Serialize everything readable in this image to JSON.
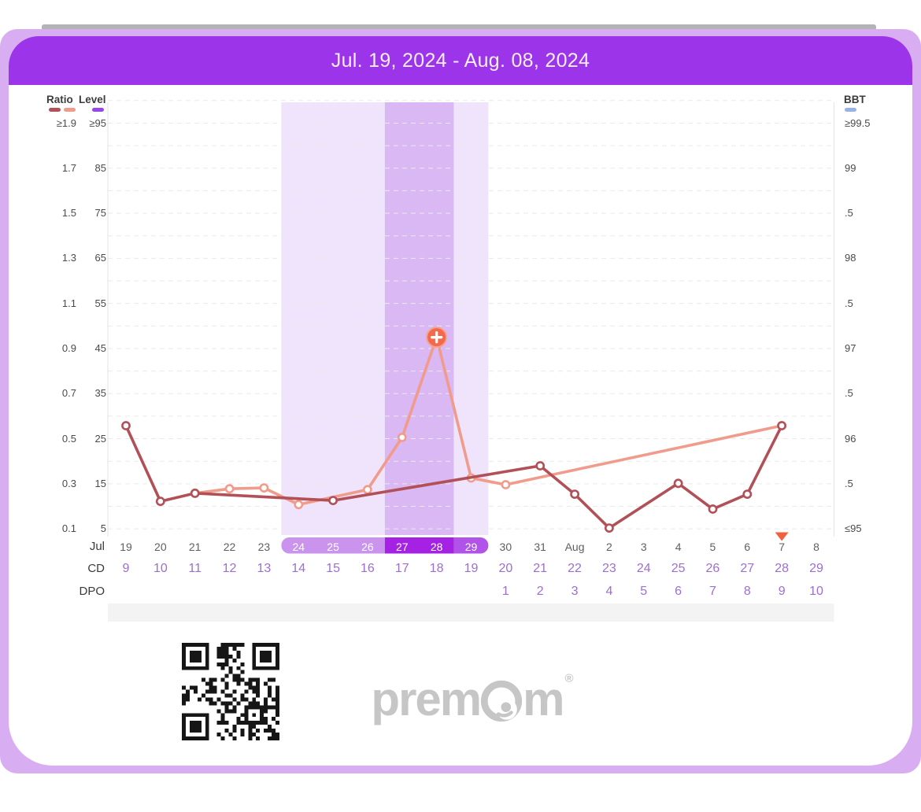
{
  "window": {
    "title": "Jul. 19, 2024 - Aug. 08, 2024"
  },
  "colors": {
    "header_purple": "#9c34e9",
    "frame_lavender": "#d8adf1",
    "ratio_dark": "#b25058",
    "ratio_salmon": "#f09b8b",
    "level_purple": "#9747e8",
    "bbt_blue": "#97b1ea",
    "band_light": "#efe4fb",
    "band_dark": "#d9b8f4",
    "pill_light": "#ca93ee",
    "pill_dark": "#a521e3",
    "pill_mid": "#b152e8",
    "peak_marker": "#f3694d",
    "today_triangle": "#f0613e",
    "cd_dpo_text": "#9d6ed2",
    "grid_line": "#eaeaea",
    "notes_strip": "#f3f3f4",
    "logo_gray": "#c6c6c6"
  },
  "legend": {
    "ratio_label": "Ratio",
    "level_label": "Level",
    "bbt_label": "BBT"
  },
  "axes": {
    "ratio_ticks": [
      "≥1.9",
      "1.7",
      "1.5",
      "1.3",
      "1.1",
      "0.9",
      "0.7",
      "0.5",
      "0.3",
      "0.1"
    ],
    "level_ticks": [
      "≥95",
      "85",
      "75",
      "65",
      "55",
      "45",
      "35",
      "25",
      "15",
      "5"
    ],
    "bbt_ticks": [
      "≥99.5",
      "99",
      ".5",
      "98",
      ".5",
      "97",
      ".5",
      "96",
      ".5",
      "≤95"
    ]
  },
  "x_axis": {
    "month_label": "Jul",
    "cd_row_label": "CD",
    "dpo_row_label": "DPO",
    "dates": [
      "19",
      "20",
      "21",
      "22",
      "23",
      "24",
      "25",
      "26",
      "27",
      "28",
      "29",
      "30",
      "31",
      "Aug",
      "2",
      "3",
      "4",
      "5",
      "6",
      "7",
      "8"
    ],
    "cd": [
      "9",
      "10",
      "11",
      "12",
      "13",
      "14",
      "15",
      "16",
      "17",
      "18",
      "19",
      "20",
      "21",
      "22",
      "23",
      "24",
      "25",
      "26",
      "27",
      "28",
      "29"
    ],
    "dpo": [
      "",
      "",
      "",
      "",
      "",
      "",
      "",
      "",
      "",
      "",
      "",
      "1",
      "2",
      "3",
      "4",
      "5",
      "6",
      "7",
      "8",
      "9",
      "10"
    ]
  },
  "chart_data": {
    "type": "line",
    "title": "Jul. 19, 2024 - Aug. 08, 2024",
    "x_categories": [
      "19",
      "20",
      "21",
      "22",
      "23",
      "24",
      "25",
      "26",
      "27",
      "28",
      "29",
      "30",
      "31",
      "Aug",
      "2",
      "3",
      "4",
      "5",
      "6",
      "7",
      "8"
    ],
    "left_axis": {
      "label": "Ratio / Level",
      "ratio_range": [
        0.1,
        1.9
      ],
      "level_range": [
        5,
        95
      ]
    },
    "right_axis": {
      "label": "BBT",
      "range_f": [
        95,
        99.5
      ]
    },
    "grid": "dashed-horizontal",
    "fertile_window": {
      "start_index": 5,
      "end_index": 10,
      "peak_start_index": 8,
      "peak_end_index": 9,
      "days": [
        "24",
        "25",
        "26",
        "27",
        "28",
        "29"
      ],
      "peak_days": [
        "27",
        "28"
      ]
    },
    "today_marker_index": 19,
    "series": [
      {
        "name": "ratio-dark",
        "color": "#b25058",
        "points": [
          {
            "i": 0,
            "date": "Jul 19",
            "level": 27.9
          },
          {
            "i": 1,
            "date": "Jul 20",
            "level": 11.1
          },
          {
            "i": 2,
            "date": "Jul 21",
            "level": 12.9
          },
          {
            "i": 6,
            "date": "Jul 25",
            "level": 11.3
          },
          {
            "i": 12,
            "date": "Jul 31",
            "level": 19.0
          },
          {
            "i": 13,
            "date": "Aug 1",
            "level": 12.7
          },
          {
            "i": 14,
            "date": "Aug 2",
            "level": 5.2
          },
          {
            "i": 16,
            "date": "Aug 4",
            "level": 15.1
          },
          {
            "i": 17,
            "date": "Aug 5",
            "level": 9.4
          },
          {
            "i": 18,
            "date": "Aug 6",
            "level": 12.7
          },
          {
            "i": 19,
            "date": "Aug 7",
            "level": 27.9
          }
        ]
      },
      {
        "name": "ratio-salmon",
        "color": "#f09b8b",
        "peak_i": 9,
        "points": [
          {
            "i": 2,
            "date": "Jul 21",
            "level": 12.9
          },
          {
            "i": 3,
            "date": "Jul 22",
            "level": 13.9
          },
          {
            "i": 4,
            "date": "Jul 23",
            "level": 14.1
          },
          {
            "i": 5,
            "date": "Jul 24",
            "level": 10.4
          },
          {
            "i": 7,
            "date": "Jul 26",
            "level": 13.7
          },
          {
            "i": 8,
            "date": "Jul 27",
            "level": 25.3
          },
          {
            "i": 9,
            "date": "Jul 28",
            "level": 47.5
          },
          {
            "i": 10,
            "date": "Jul 29",
            "level": 16.3
          },
          {
            "i": 11,
            "date": "Jul 30",
            "level": 14.8
          },
          {
            "i": 19,
            "date": "Aug 7",
            "level": 27.9
          }
        ]
      }
    ]
  },
  "footer": {
    "logo_prefix": "prem",
    "logo_suffix": "m",
    "registered": "®"
  }
}
